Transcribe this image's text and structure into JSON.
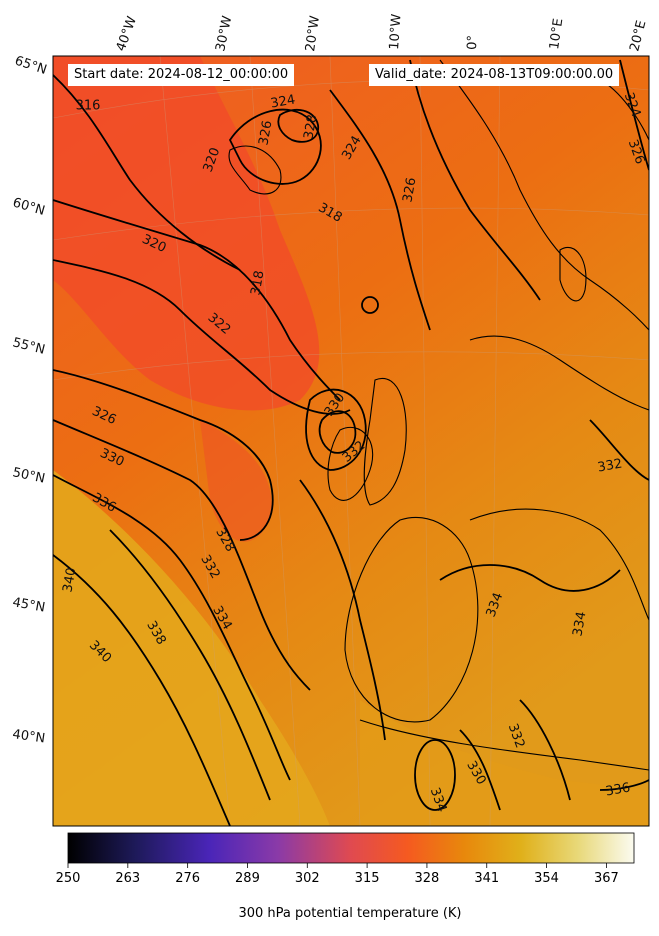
{
  "map": {
    "title_left": "Start date: 2024-08-12_00:00:00",
    "title_right": "Valid_date: 2024-08-13T09:00:00.00",
    "lon_labels": [
      "40°W",
      "30°W",
      "20°W",
      "10°W",
      "0°",
      "10°E",
      "20°E"
    ],
    "lat_labels": [
      "65°N",
      "60°N",
      "55°N",
      "50°N",
      "45°N",
      "40°N"
    ],
    "contour_labels": [
      "316",
      "324",
      "320",
      "326",
      "328",
      "324",
      "326",
      "324",
      "326",
      "318",
      "320",
      "318",
      "322",
      "330",
      "332",
      "326",
      "330",
      "336",
      "328",
      "332",
      "334",
      "338",
      "340",
      "340",
      "334",
      "334",
      "332",
      "330",
      "334",
      "336",
      "332"
    ],
    "colors": {
      "cold": "#f04a2a",
      "mid": "#e8760f",
      "warm": "#e2a21c",
      "contour": "#000000"
    }
  },
  "colorbar": {
    "label": "300 hPa potential temperature (K)",
    "ticks": [
      "250",
      "263",
      "276",
      "289",
      "302",
      "315",
      "328",
      "341",
      "354",
      "367"
    ],
    "range": [
      250,
      373
    ]
  }
}
